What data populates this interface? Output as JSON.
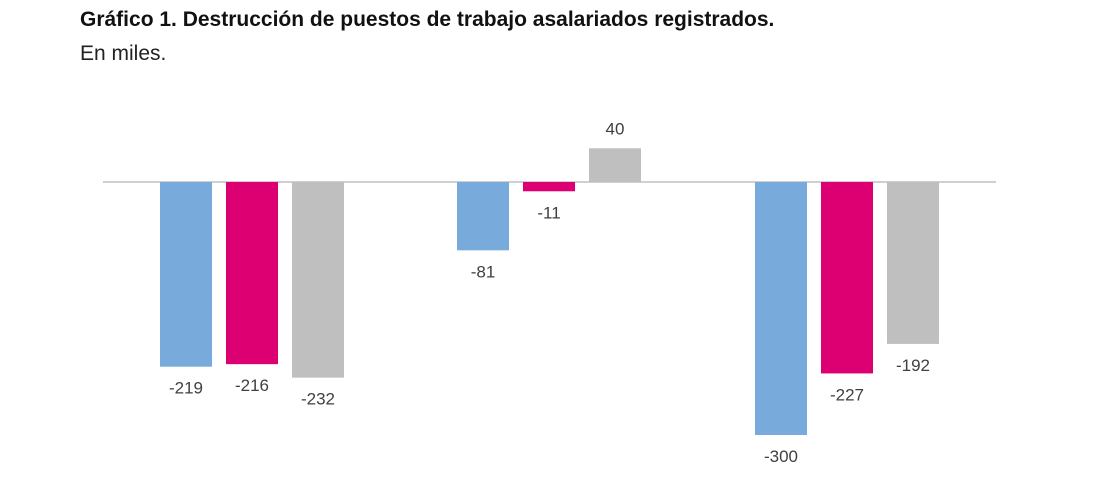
{
  "title": "Gráfico 1. Destrucción de puestos de trabajo asalariados registrados.",
  "subtitle": "En miles.",
  "chart_data": {
    "type": "bar",
    "title": "Gráfico 1. Destrucción de puestos de trabajo asalariados registrados.",
    "subtitle": "En miles.",
    "categories": [
      "",
      "",
      ""
    ],
    "series": [
      {
        "values": [
          -219,
          -81,
          -300
        ],
        "color": "#78aadc"
      },
      {
        "values": [
          -216,
          -11,
          -227
        ],
        "color": "#dc0073"
      },
      {
        "values": [
          -232,
          40,
          -192
        ],
        "color": "#bfbfbf"
      }
    ],
    "ylim": [
      -300,
      40
    ],
    "grid": false,
    "legend": false,
    "data_labels": true
  }
}
